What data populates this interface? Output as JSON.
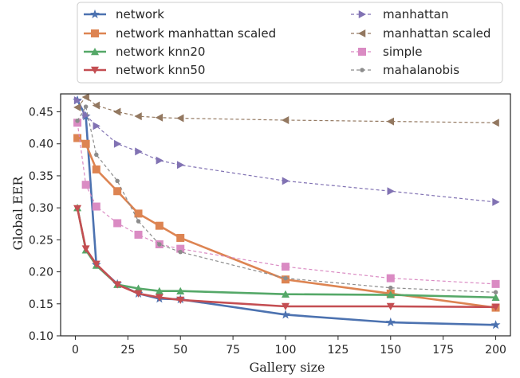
{
  "chart_data": {
    "type": "line",
    "title": "",
    "xlabel": "Gallery size",
    "ylabel": "Global EER",
    "xlim": [
      -7,
      207
    ],
    "ylim": [
      0.1,
      0.478
    ],
    "xticks": [
      0,
      25,
      50,
      75,
      100,
      125,
      150,
      175,
      200
    ],
    "xtick_labels": [
      "0",
      "25",
      "50",
      "75",
      "100",
      "125",
      "150",
      "175",
      "200"
    ],
    "yticks": [
      0.1,
      0.15,
      0.2,
      0.25,
      0.3,
      0.35,
      0.4,
      0.45
    ],
    "ytick_labels": [
      "0.10",
      "0.15",
      "0.20",
      "0.25",
      "0.30",
      "0.35",
      "0.40",
      "0.45"
    ],
    "grid": false,
    "legend_position": "top, outside plot, two columns",
    "series": [
      {
        "name": "network",
        "color": "#4c72b0",
        "marker": "star",
        "linestyle": "solid",
        "x": [
          1,
          5,
          10,
          20,
          30,
          40,
          50,
          100,
          150,
          200
        ],
        "y": [
          0.468,
          0.443,
          0.211,
          0.181,
          0.166,
          0.158,
          0.157,
          0.133,
          0.121,
          0.117
        ]
      },
      {
        "name": "network manhattan scaled",
        "color": "#dd8452",
        "marker": "square",
        "linestyle": "solid",
        "x": [
          1,
          5,
          10,
          20,
          30,
          40,
          50,
          100,
          150,
          200
        ],
        "y": [
          0.409,
          0.4,
          0.36,
          0.326,
          0.291,
          0.272,
          0.253,
          0.188,
          0.166,
          0.144
        ]
      },
      {
        "name": "network knn20",
        "color": "#55a868",
        "marker": "triangle-up",
        "linestyle": "solid",
        "x": [
          1,
          5,
          10,
          20,
          30,
          40,
          50,
          100,
          150,
          200
        ],
        "y": [
          0.3,
          0.234,
          0.21,
          0.18,
          0.174,
          0.17,
          0.17,
          0.165,
          0.164,
          0.16
        ]
      },
      {
        "name": "network knn50",
        "color": "#c44e52",
        "marker": "triangle-down",
        "linestyle": "solid",
        "x": [
          1,
          5,
          10,
          20,
          30,
          40,
          50,
          100,
          150,
          200
        ],
        "y": [
          0.299,
          0.236,
          0.212,
          0.18,
          0.166,
          0.16,
          0.156,
          0.146,
          0.146,
          0.145
        ]
      },
      {
        "name": "manhattan",
        "color": "#8172b3",
        "marker": "triangle-right",
        "linestyle": "dashed",
        "x": [
          1,
          5,
          10,
          20,
          30,
          40,
          50,
          100,
          150,
          200
        ],
        "y": [
          0.468,
          0.445,
          0.428,
          0.4,
          0.388,
          0.374,
          0.367,
          0.342,
          0.326,
          0.309
        ]
      },
      {
        "name": "manhattan scaled",
        "color": "#937860",
        "marker": "triangle-left",
        "linestyle": "dashed",
        "x": [
          1,
          5,
          10,
          20,
          30,
          40,
          50,
          100,
          150,
          200
        ],
        "y": [
          0.457,
          0.473,
          0.46,
          0.45,
          0.443,
          0.441,
          0.44,
          0.437,
          0.435,
          0.433
        ]
      },
      {
        "name": "simple",
        "color": "#da8bc3",
        "marker": "square",
        "linestyle": "dashed",
        "x": [
          1,
          5,
          10,
          20,
          30,
          40,
          50,
          100,
          150,
          200
        ],
        "y": [
          0.433,
          0.336,
          0.302,
          0.276,
          0.258,
          0.243,
          0.236,
          0.208,
          0.19,
          0.181
        ]
      },
      {
        "name": "mahalanobis",
        "color": "#8c8c8c",
        "marker": "dot",
        "linestyle": "dashed",
        "x": [
          1,
          5,
          10,
          20,
          30,
          40,
          50,
          100,
          150,
          200
        ],
        "y": [
          0.436,
          0.458,
          0.383,
          0.342,
          0.279,
          0.243,
          0.231,
          0.19,
          0.175,
          0.168
        ]
      }
    ]
  }
}
